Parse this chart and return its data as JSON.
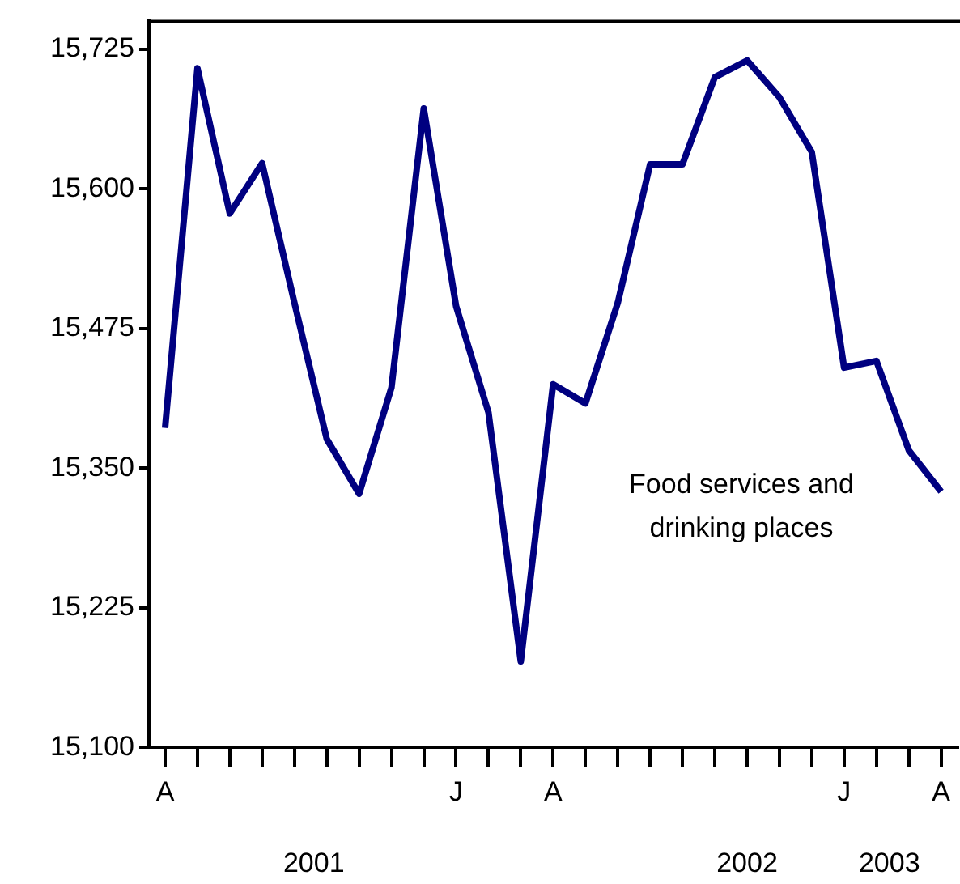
{
  "chart_data": {
    "type": "line",
    "categories": [
      "A",
      null,
      null,
      null,
      null,
      null,
      null,
      null,
      null,
      "J",
      null,
      null,
      "A",
      null,
      null,
      null,
      null,
      null,
      null,
      null,
      null,
      "J",
      null,
      null,
      "A"
    ],
    "series": [
      {
        "name": "Food services and drinking places",
        "color": "#000080",
        "values": [
          15386,
          15708,
          15578,
          15623,
          15498,
          15376,
          15327,
          15422,
          15672,
          15495,
          15400,
          15177,
          15425,
          15408,
          15498,
          15622,
          15622,
          15700,
          15715,
          15682,
          15633,
          15440,
          15446,
          15366,
          15329
        ]
      }
    ],
    "ylim": [
      15100,
      15750
    ],
    "yticks": [
      {
        "value": 15100,
        "label": "15,100"
      },
      {
        "value": 15225,
        "label": "15,225"
      },
      {
        "value": 15350,
        "label": "15,350"
      },
      {
        "value": 15475,
        "label": "15,475"
      },
      {
        "value": 15600,
        "label": "15,600"
      },
      {
        "value": 15725,
        "label": "15,725"
      }
    ],
    "annotations": [
      "2001",
      "2002",
      "2003"
    ],
    "grid": false,
    "legend": false,
    "marker": "none",
    "line_style": "solid"
  }
}
